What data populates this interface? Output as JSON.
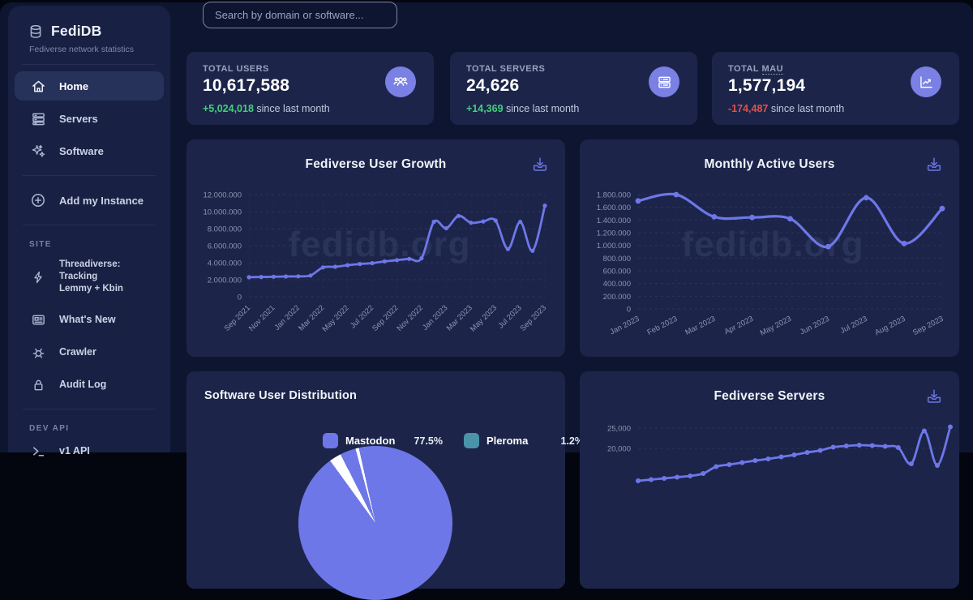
{
  "brand": {
    "name": "FediDB",
    "tagline": "Fediverse network statistics"
  },
  "sidebar": {
    "nav": [
      {
        "label": "Home",
        "icon": "home-icon",
        "active": true
      },
      {
        "label": "Servers",
        "icon": "servers-icon",
        "active": false
      },
      {
        "label": "Software",
        "icon": "software-icon",
        "active": false
      }
    ],
    "add_instance_label": "Add my Instance",
    "site_title": "SITE",
    "site_items": [
      {
        "label": "Threadiverse: Tracking Lemmy + Kbin",
        "line1": "Threadiverse: Tracking",
        "line2": "Lemmy + Kbin",
        "icon": "bolt-icon"
      },
      {
        "label": "What's New",
        "icon": "newspaper-icon"
      },
      {
        "label": "Crawler",
        "icon": "bug-icon"
      },
      {
        "label": "Audit Log",
        "icon": "lock-icon"
      }
    ],
    "dev_title": "DEV API",
    "dev_items": [
      {
        "label": "v1 API",
        "icon": "terminal-icon"
      }
    ]
  },
  "search": {
    "placeholder": "Search by domain or software..."
  },
  "stats": [
    {
      "label": "TOTAL USERS",
      "value": "10,617,588",
      "delta": "+5,024,018",
      "delta_dir": "up",
      "suffix": "since last month",
      "icon": "users-icon"
    },
    {
      "label": "TOTAL SERVERS",
      "value": "24,626",
      "delta": "+14,369",
      "delta_dir": "up",
      "suffix": "since last month",
      "icon": "server-icon"
    },
    {
      "label": "TOTAL MAU",
      "prefix": "TOTAL ",
      "abbr": "MAU",
      "value": "1,577,194",
      "delta": "-174,487",
      "delta_dir": "down",
      "suffix": "since last month",
      "icon": "chart-trend-icon"
    }
  ],
  "watermark": "fedidb.org",
  "colors": {
    "accent": "#6e77e8",
    "green": "#42cf7f",
    "red": "#e25050",
    "icon_bubble": "#7a80e4",
    "card_bg": "#1c2549",
    "page_bg": "#0e1531",
    "sidebar_bg": "#182144"
  },
  "chart_data": [
    {
      "type": "line",
      "title": "Fediverse User Growth",
      "x_labels": [
        "Sep 2021",
        "Nov 2021",
        "Jan 2022",
        "Mar 2022",
        "May 2022",
        "Jul 2022",
        "Sep 2022",
        "Nov 2022",
        "Jan 2023",
        "Mar 2023",
        "May 2023",
        "Jul 2023",
        "Sep 2023"
      ],
      "values": [
        2300000,
        2320000,
        2350000,
        2380000,
        2400000,
        2500000,
        3450000,
        3520000,
        3700000,
        3850000,
        3950000,
        4150000,
        4300000,
        4450000,
        4520000,
        8800000,
        8050000,
        9500000,
        8700000,
        8850000,
        8950000,
        5600000,
        8800000,
        5400000,
        10700000
      ],
      "y_ticks": [
        {
          "label": "12.000.000",
          "value": 12000000
        },
        {
          "label": "10.000.000",
          "value": 10000000
        },
        {
          "label": "8.000.000",
          "value": 8000000
        },
        {
          "label": "6.000.000",
          "value": 6000000
        },
        {
          "label": "4.000.000",
          "value": 4000000
        },
        {
          "label": "2.000.000",
          "value": 2000000
        },
        {
          "label": "0",
          "value": 0
        }
      ],
      "ylim": [
        0,
        12000000
      ],
      "line_color": "#6e77e8",
      "grid": "dashed",
      "legend_position": "none"
    },
    {
      "type": "line",
      "title": "Monthly Active Users",
      "x_labels": [
        "Jan 2023",
        "Feb 2023",
        "Mar 2023",
        "Apr 2023",
        "May 2023",
        "Jun 2023",
        "Jul 2023",
        "Aug 2023",
        "Sep 2023"
      ],
      "values": [
        1700000,
        1800000,
        1450000,
        1440000,
        1420000,
        980000,
        1750000,
        1030000,
        1580000
      ],
      "y_ticks": [
        {
          "label": "1.800.000",
          "value": 1800000
        },
        {
          "label": "1.600.000",
          "value": 1600000
        },
        {
          "label": "1.400.000",
          "value": 1400000
        },
        {
          "label": "1.200.000",
          "value": 1200000
        },
        {
          "label": "1.000.000",
          "value": 1000000
        },
        {
          "label": "800.000",
          "value": 800000
        },
        {
          "label": "600.000",
          "value": 600000
        },
        {
          "label": "400.000",
          "value": 400000
        },
        {
          "label": "200.000",
          "value": 200000
        },
        {
          "label": "0",
          "value": 0
        }
      ],
      "ylim": [
        0,
        1800000
      ],
      "line_color": "#6e77e8",
      "grid": "dashed",
      "legend_position": "none"
    },
    {
      "type": "pie",
      "title": "Software User Distribution",
      "legend": [
        {
          "name": "Mastodon",
          "pct": "77.5%",
          "value": 77.5,
          "color": "#6e77e8"
        },
        {
          "name": "Pleroma",
          "pct": "1.2%",
          "value": 1.2,
          "color": "#4a93a8"
        }
      ],
      "legend_position": "top"
    },
    {
      "type": "line",
      "title": "Fediverse Servers",
      "x_labels": [],
      "values": [
        12000,
        12300,
        12600,
        12900,
        13200,
        13800,
        15500,
        16000,
        16500,
        17000,
        17400,
        17900,
        18400,
        19000,
        19500,
        20300,
        20600,
        20800,
        20700,
        20500,
        20200,
        16200,
        24300,
        15800,
        25300
      ],
      "y_ticks": [
        {
          "label": "25,000",
          "value": 25000
        },
        {
          "label": "20,000",
          "value": 20000
        }
      ],
      "ylim": [
        0,
        25000
      ],
      "line_color": "#6e77e8",
      "grid": "dashed",
      "legend_position": "none"
    }
  ]
}
